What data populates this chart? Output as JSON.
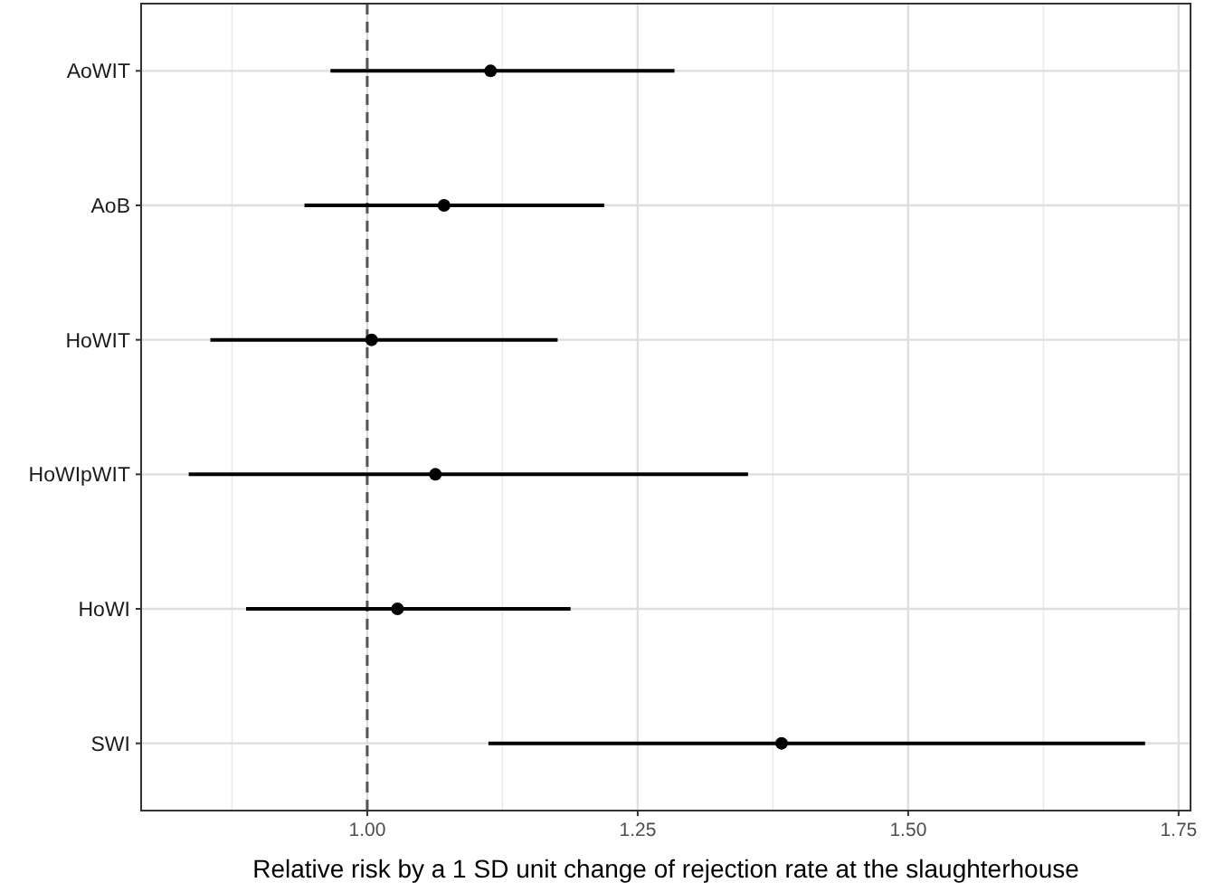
{
  "chart_data": {
    "type": "scatter",
    "orientation": "horizontal",
    "xlabel": "Relative risk by a 1 SD unit change of rejection rate at the slaughterhouse",
    "categories": [
      "AoWIT",
      "AoB",
      "HoWIT",
      "HoWIpWIT",
      "HoWI",
      "SWI"
    ],
    "values": [
      1.114,
      1.071,
      1.004,
      1.063,
      1.028,
      1.383
    ],
    "errors": [
      [
        0.966,
        1.284
      ],
      [
        0.942,
        1.219
      ],
      [
        0.855,
        1.176
      ],
      [
        0.835,
        1.352
      ],
      [
        0.888,
        1.188
      ],
      [
        1.112,
        1.719
      ]
    ],
    "color": "#000000",
    "marker": "circle",
    "xlim": [
      0.791,
      1.761
    ],
    "xticks": [
      {
        "value": 1,
        "label": "1.00"
      },
      1.25,
      {
        "value": 1.5,
        "label": "1.50"
      },
      1.75
    ],
    "grid": true,
    "ref_lines": [
      {
        "axis": "x",
        "value": 1,
        "line_style": "dashed",
        "color": "#555555"
      }
    ]
  }
}
